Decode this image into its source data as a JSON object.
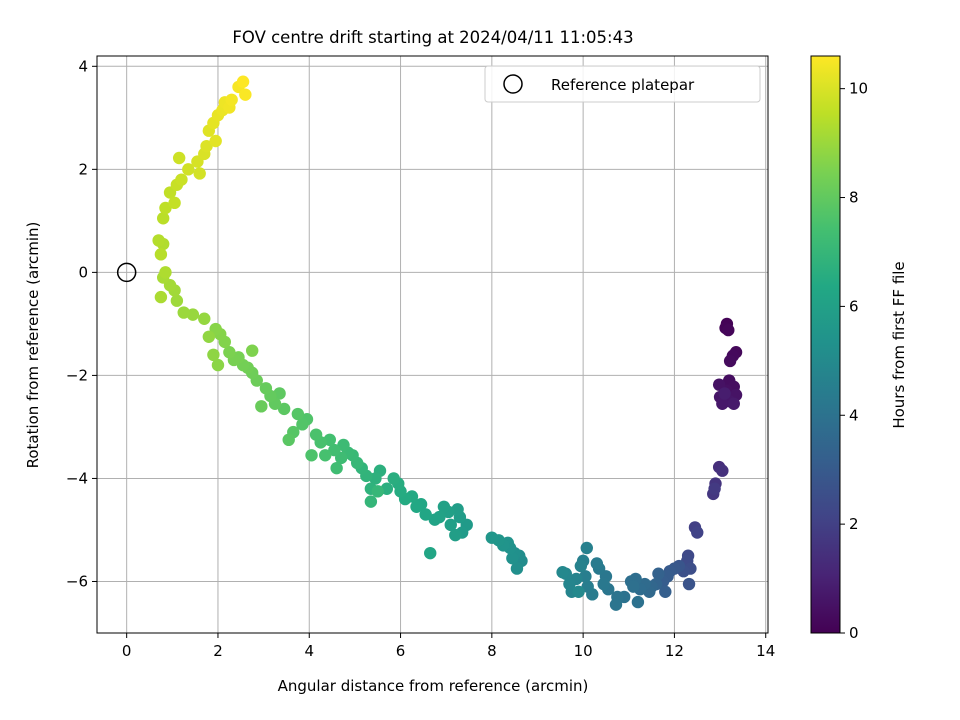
{
  "chart_data": {
    "type": "scatter",
    "title": "FOV centre drift starting at 2024/04/11 11:05:43",
    "xlabel": "Angular distance from reference (arcmin)",
    "ylabel": "Rotation from reference (arcmin)",
    "xlim": [
      -0.65,
      14.05
    ],
    "ylim": [
      -7.0,
      4.2
    ],
    "xticks": [
      0,
      2,
      4,
      6,
      8,
      10,
      12,
      14
    ],
    "yticks": [
      -6,
      -4,
      -2,
      0,
      2,
      4
    ],
    "grid": true,
    "legend": {
      "placement": "top-right",
      "entries": [
        "Reference platepar"
      ]
    },
    "colorbar": {
      "label": "Hours from first FF file",
      "colormap": "viridis",
      "range": [
        0,
        10.6
      ],
      "ticks": [
        0,
        2,
        4,
        6,
        8,
        10
      ]
    },
    "reference_point": {
      "x": 0,
      "y": 0
    },
    "columns": [
      "x",
      "y",
      "hours"
    ],
    "points": [
      [
        13.15,
        -1.0,
        0.05
      ],
      [
        13.12,
        -1.08,
        0.1
      ],
      [
        13.18,
        -1.12,
        0.15
      ],
      [
        13.35,
        -1.55,
        0.2
      ],
      [
        13.28,
        -1.62,
        0.25
      ],
      [
        13.22,
        -1.72,
        0.3
      ],
      [
        13.2,
        -2.1,
        0.35
      ],
      [
        13.3,
        -2.22,
        0.4
      ],
      [
        13.15,
        -2.3,
        0.45
      ],
      [
        12.98,
        -2.18,
        0.5
      ],
      [
        13.35,
        -2.38,
        0.55
      ],
      [
        13.0,
        -2.42,
        0.6
      ],
      [
        13.2,
        -2.5,
        0.65
      ],
      [
        13.05,
        -2.55,
        0.7
      ],
      [
        13.3,
        -2.55,
        0.75
      ],
      [
        13.1,
        -2.35,
        0.85
      ],
      [
        12.98,
        -3.78,
        1.4
      ],
      [
        13.05,
        -3.85,
        1.5
      ],
      [
        12.9,
        -4.1,
        1.6
      ],
      [
        12.85,
        -4.3,
        1.7
      ],
      [
        12.88,
        -4.2,
        1.8
      ],
      [
        12.45,
        -4.95,
        2.0
      ],
      [
        12.5,
        -5.05,
        2.1
      ],
      [
        12.3,
        -5.5,
        2.3
      ],
      [
        12.28,
        -5.6,
        2.4
      ],
      [
        12.35,
        -5.75,
        2.5
      ],
      [
        12.2,
        -5.8,
        2.6
      ],
      [
        12.32,
        -6.05,
        2.7
      ],
      [
        12.1,
        -5.7,
        2.8
      ],
      [
        12.0,
        -5.75,
        2.9
      ],
      [
        11.9,
        -5.8,
        3.0
      ],
      [
        11.85,
        -5.9,
        3.05
      ],
      [
        11.75,
        -6.0,
        3.1
      ],
      [
        11.8,
        -6.2,
        3.2
      ],
      [
        11.65,
        -5.85,
        3.3
      ],
      [
        11.6,
        -6.05,
        3.4
      ],
      [
        11.5,
        -6.1,
        3.5
      ],
      [
        11.45,
        -6.2,
        3.6
      ],
      [
        11.35,
        -6.05,
        3.7
      ],
      [
        11.25,
        -6.15,
        3.75
      ],
      [
        11.15,
        -5.95,
        3.8
      ],
      [
        11.05,
        -6.0,
        3.85
      ],
      [
        11.1,
        -6.1,
        3.9
      ],
      [
        11.2,
        -6.4,
        3.95
      ],
      [
        10.9,
        -6.3,
        4.0
      ],
      [
        10.75,
        -6.3,
        4.05
      ],
      [
        10.72,
        -6.45,
        4.1
      ],
      [
        10.55,
        -6.15,
        4.15
      ],
      [
        10.5,
        -5.9,
        4.2
      ],
      [
        10.45,
        -6.05,
        4.25
      ],
      [
        10.35,
        -5.75,
        4.3
      ],
      [
        10.3,
        -5.65,
        4.35
      ],
      [
        10.2,
        -6.25,
        4.4
      ],
      [
        10.1,
        -6.1,
        4.45
      ],
      [
        10.05,
        -5.9,
        4.5
      ],
      [
        10.0,
        -5.6,
        4.55
      ],
      [
        10.08,
        -5.35,
        4.6
      ],
      [
        9.95,
        -5.7,
        4.65
      ],
      [
        9.85,
        -5.95,
        4.7
      ],
      [
        9.75,
        -6.2,
        4.75
      ],
      [
        9.7,
        -6.05,
        4.8
      ],
      [
        9.62,
        -5.85,
        4.85
      ],
      [
        9.55,
        -5.82,
        4.9
      ],
      [
        9.9,
        -6.2,
        4.95
      ],
      [
        8.65,
        -5.6,
        5.1
      ],
      [
        8.6,
        -5.5,
        5.15
      ],
      [
        8.55,
        -5.75,
        5.2
      ],
      [
        8.5,
        -5.45,
        5.25
      ],
      [
        8.45,
        -5.55,
        5.3
      ],
      [
        8.4,
        -5.35,
        5.35
      ],
      [
        8.35,
        -5.25,
        5.4
      ],
      [
        8.25,
        -5.3,
        5.45
      ],
      [
        8.15,
        -5.2,
        5.5
      ],
      [
        8.0,
        -5.15,
        5.55
      ],
      [
        7.45,
        -4.9,
        5.7
      ],
      [
        7.35,
        -5.05,
        5.75
      ],
      [
        7.3,
        -4.75,
        5.8
      ],
      [
        7.25,
        -4.6,
        5.85
      ],
      [
        7.2,
        -5.1,
        5.9
      ],
      [
        7.1,
        -4.9,
        5.95
      ],
      [
        7.05,
        -4.65,
        6.0
      ],
      [
        6.95,
        -4.55,
        6.05
      ],
      [
        6.85,
        -4.75,
        6.1
      ],
      [
        6.75,
        -4.8,
        6.15
      ],
      [
        6.65,
        -5.45,
        6.2
      ],
      [
        6.55,
        -4.7,
        6.25
      ],
      [
        6.45,
        -4.5,
        6.3
      ],
      [
        6.35,
        -4.55,
        6.35
      ],
      [
        6.25,
        -4.35,
        6.4
      ],
      [
        6.1,
        -4.4,
        6.45
      ],
      [
        6.0,
        -4.25,
        6.5
      ],
      [
        5.95,
        -4.1,
        6.55
      ],
      [
        5.85,
        -4.0,
        6.6
      ],
      [
        5.7,
        -4.2,
        6.65
      ],
      [
        5.55,
        -3.85,
        6.7
      ],
      [
        5.45,
        -4.0,
        6.75
      ],
      [
        5.35,
        -4.2,
        6.8
      ],
      [
        5.25,
        -3.95,
        6.85
      ],
      [
        5.15,
        -3.8,
        6.9
      ],
      [
        5.35,
        -4.45,
        6.95
      ],
      [
        5.5,
        -4.25,
        7.0
      ],
      [
        5.05,
        -3.7,
        7.05
      ],
      [
        4.95,
        -3.55,
        7.1
      ],
      [
        4.85,
        -3.5,
        7.15
      ],
      [
        4.75,
        -3.35,
        7.2
      ],
      [
        4.7,
        -3.6,
        7.25
      ],
      [
        4.6,
        -3.8,
        7.3
      ],
      [
        4.55,
        -3.45,
        7.35
      ],
      [
        4.45,
        -3.25,
        7.4
      ],
      [
        4.35,
        -3.55,
        7.45
      ],
      [
        4.25,
        -3.3,
        7.5
      ],
      [
        4.15,
        -3.15,
        7.55
      ],
      [
        4.05,
        -3.55,
        7.6
      ],
      [
        3.95,
        -2.85,
        7.65
      ],
      [
        3.85,
        -2.95,
        7.7
      ],
      [
        3.75,
        -2.75,
        7.75
      ],
      [
        3.65,
        -3.1,
        7.8
      ],
      [
        3.55,
        -3.25,
        7.85
      ],
      [
        3.45,
        -2.65,
        7.9
      ],
      [
        3.35,
        -2.35,
        7.95
      ],
      [
        3.25,
        -2.55,
        8.0
      ],
      [
        3.15,
        -2.4,
        8.05
      ],
      [
        3.05,
        -2.25,
        8.1
      ],
      [
        2.95,
        -2.6,
        8.15
      ],
      [
        2.85,
        -2.1,
        8.2
      ],
      [
        2.75,
        -1.95,
        8.25
      ],
      [
        2.65,
        -1.85,
        8.3
      ],
      [
        2.55,
        -1.8,
        8.35
      ],
      [
        2.45,
        -1.65,
        8.4
      ],
      [
        2.35,
        -1.7,
        8.45
      ],
      [
        2.25,
        -1.55,
        8.5
      ],
      [
        2.75,
        -1.52,
        8.55
      ],
      [
        2.15,
        -1.35,
        8.6
      ],
      [
        2.05,
        -1.2,
        8.65
      ],
      [
        1.95,
        -1.1,
        8.7
      ],
      [
        2.0,
        -1.8,
        8.75
      ],
      [
        1.9,
        -1.6,
        8.8
      ],
      [
        1.8,
        -1.25,
        8.85
      ],
      [
        1.7,
        -0.9,
        8.9
      ],
      [
        1.45,
        -0.82,
        8.95
      ],
      [
        1.25,
        -0.78,
        9.0
      ],
      [
        1.1,
        -0.55,
        9.05
      ],
      [
        1.05,
        -0.35,
        9.1
      ],
      [
        0.95,
        -0.25,
        9.15
      ],
      [
        0.8,
        -0.1,
        9.2
      ],
      [
        0.75,
        -0.48,
        9.25
      ],
      [
        0.85,
        0.0,
        9.3
      ],
      [
        0.8,
        0.55,
        9.35
      ],
      [
        0.7,
        0.62,
        9.4
      ],
      [
        0.75,
        0.35,
        9.45
      ],
      [
        0.8,
        1.05,
        9.5
      ],
      [
        0.85,
        1.25,
        9.55
      ],
      [
        0.95,
        1.55,
        9.6
      ],
      [
        1.05,
        1.35,
        9.65
      ],
      [
        1.1,
        1.7,
        9.7
      ],
      [
        1.2,
        1.8,
        9.75
      ],
      [
        1.15,
        2.22,
        9.8
      ],
      [
        1.35,
        2.0,
        9.85
      ],
      [
        1.6,
        1.92,
        9.9
      ],
      [
        1.55,
        2.15,
        9.95
      ],
      [
        1.7,
        2.3,
        10.0
      ],
      [
        1.75,
        2.45,
        10.05
      ],
      [
        1.8,
        2.75,
        10.1
      ],
      [
        1.95,
        2.55,
        10.15
      ],
      [
        1.9,
        2.9,
        10.2
      ],
      [
        2.0,
        3.05,
        10.25
      ],
      [
        2.1,
        3.15,
        10.3
      ],
      [
        2.15,
        3.3,
        10.35
      ],
      [
        2.25,
        3.2,
        10.4
      ],
      [
        2.3,
        3.35,
        10.45
      ],
      [
        2.45,
        3.6,
        10.5
      ],
      [
        2.6,
        3.45,
        10.55
      ],
      [
        2.55,
        3.7,
        10.6
      ]
    ]
  }
}
